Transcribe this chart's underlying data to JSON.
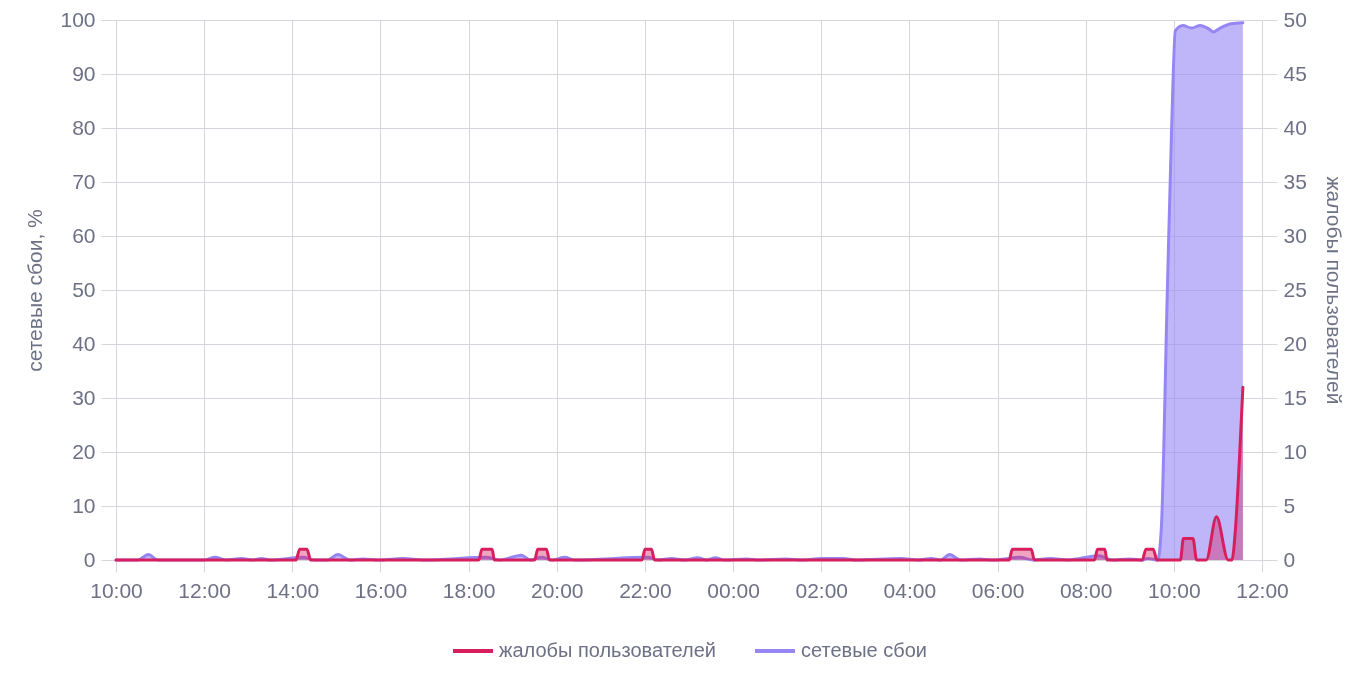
{
  "chart_data": {
    "type": "area",
    "ylabel": "сетевые сбои, %",
    "y2label": "жалобы пользователей",
    "xlim": [
      "--01-01T10:00",
      "--01-02T12:00"
    ],
    "xticks": [
      {
        "value": "--01-01T10:00",
        "label": "10:00"
      },
      {
        "value": "--01-01T12:00",
        "label": "12:00"
      },
      {
        "value": "--01-01T14:00",
        "label": "14:00"
      },
      {
        "value": "--01-01T16:00",
        "label": "16:00"
      },
      {
        "value": "--01-01T18:00",
        "label": "18:00"
      },
      {
        "value": "--01-01T20:00",
        "label": "20:00"
      },
      {
        "value": "--01-01T22:00",
        "label": "22:00"
      },
      {
        "value": "--01-02T00:00",
        "label": "00:00"
      },
      {
        "value": "--01-02T02:00",
        "label": "02:00"
      },
      {
        "value": "--01-02T04:00",
        "label": "04:00"
      },
      {
        "value": "--01-02T06:00",
        "label": "06:00"
      },
      {
        "value": "--01-02T08:00",
        "label": "08:00"
      },
      {
        "value": "--01-02T10:00",
        "label": "10:00"
      },
      {
        "value": "--01-02T12:00",
        "label": "12:00"
      }
    ],
    "ylim": [
      0,
      100
    ],
    "yticks": [
      0,
      10,
      20,
      30,
      40,
      50,
      60,
      70,
      80,
      90,
      100
    ],
    "y2lim": [
      0,
      50
    ],
    "y2ticks": [
      0,
      5,
      10,
      15,
      20,
      25,
      30,
      35,
      40,
      45,
      50
    ],
    "grid": true,
    "legend": "bottom",
    "series": [
      {
        "name": "сетевые сбои",
        "color": "#9585f5",
        "axis": "y",
        "x": [
          "--01-01T10:00",
          "--01-01T10:30",
          "--01-01T10:44",
          "--01-01T10:57",
          "--01-01T12:00",
          "--01-01T12:15",
          "--01-01T12:30",
          "--01-01T12:51",
          "--01-01T13:06",
          "--01-01T13:18",
          "--01-01T13:30",
          "--01-01T14:15",
          "--01-01T14:30",
          "--01-01T14:48",
          "--01-01T15:02",
          "--01-01T15:18",
          "--01-01T15:36",
          "--01-01T16:00",
          "--01-01T16:30",
          "--01-01T17:00",
          "--01-01T18:24",
          "--01-01T18:42",
          "--01-01T19:12",
          "--01-01T19:24",
          "--01-01T19:39",
          "--01-01T19:54",
          "--01-01T20:11",
          "--01-01T20:24",
          "--01-01T22:04",
          "--01-01T22:18",
          "--01-01T22:36",
          "--01-01T22:54",
          "--01-01T23:12",
          "--01-01T23:24",
          "--01-01T23:36",
          "--01-01T23:48",
          "--01-02T00:18",
          "--01-02T00:36",
          "--01-02T01:12",
          "--01-02T01:36",
          "--01-02T02:00",
          "--01-02T02:30",
          "--01-02T02:48",
          "--01-02T03:48",
          "--01-02T04:12",
          "--01-02T04:30",
          "--01-02T04:42",
          "--01-02T04:55",
          "--01-02T05:09",
          "--01-02T05:36",
          "--01-02T05:54",
          "--01-02T06:30",
          "--01-02T06:48",
          "--01-02T07:12",
          "--01-02T07:36",
          "--01-02T08:18",
          "--01-02T08:36",
          "--01-02T09:00",
          "--01-02T09:18",
          "--01-02T09:24",
          "--01-02T09:38",
          "--01-02T09:43",
          "--01-02T09:51",
          "--01-02T09:57",
          "--01-02T10:02",
          "--01-02T10:12",
          "--01-02T10:24",
          "--01-02T10:36",
          "--01-02T10:48",
          "--01-02T10:54",
          "--01-02T11:03",
          "--01-02T11:18",
          "--01-02T11:34"
        ],
        "values": [
          0,
          0,
          1,
          0,
          0,
          0.5,
          0,
          0.3,
          0,
          0.3,
          0,
          0.5,
          0,
          0,
          1,
          0,
          0.2,
          0,
          0.3,
          0,
          0.5,
          0,
          0.9,
          0,
          0.5,
          0,
          0.5,
          0,
          0.5,
          0,
          0.3,
          0,
          0.4,
          0,
          0.4,
          0,
          0.2,
          0,
          0.2,
          0,
          0.3,
          0.3,
          0,
          0.3,
          0,
          0.3,
          0,
          1,
          0,
          0.2,
          0,
          0.5,
          0,
          0.3,
          0,
          0.8,
          0,
          0.2,
          0,
          0.3,
          0,
          6,
          49,
          80,
          98,
          99,
          98.5,
          99,
          98.3,
          97.8,
          98.5,
          99.3,
          99.5
        ]
      },
      {
        "name": "жалобы пользователей",
        "color": "#d81f5e",
        "axis": "y2",
        "x": [
          "--01-01T10:00",
          "--01-01T14:05",
          "--01-01T14:10",
          "--01-01T14:20",
          "--01-01T14:25",
          "--01-01T18:14",
          "--01-01T18:18",
          "--01-01T18:32",
          "--01-01T18:35",
          "--01-01T19:30",
          "--01-01T19:34",
          "--01-01T19:46",
          "--01-01T19:50",
          "--01-01T21:56",
          "--01-01T22:00",
          "--01-01T22:09",
          "--01-01T22:13",
          "--01-02T06:16",
          "--01-02T06:20",
          "--01-02T06:46",
          "--01-02T06:50",
          "--01-02T08:12",
          "--01-02T08:16",
          "--01-02T08:26",
          "--01-02T08:29",
          "--01-02T09:17",
          "--01-02T09:22",
          "--01-02T09:32",
          "--01-02T09:37",
          "--01-02T10:09",
          "--01-02T10:13",
          "--01-02T10:26",
          "--01-02T10:31",
          "--01-02T10:44",
          "--01-02T10:58",
          "--01-02T11:14",
          "--01-02T11:19",
          "--01-02T11:24",
          "--01-02T11:29",
          "--01-02T11:34"
        ],
        "values": [
          0,
          0,
          1,
          1,
          0,
          0,
          1,
          1,
          0,
          0,
          1,
          1,
          0,
          0,
          1,
          1,
          0,
          0,
          1,
          1,
          0,
          0,
          1,
          1,
          0,
          0,
          1,
          1,
          0,
          0,
          2,
          2,
          0,
          0,
          4,
          0,
          0,
          3,
          9,
          16
        ]
      }
    ]
  }
}
